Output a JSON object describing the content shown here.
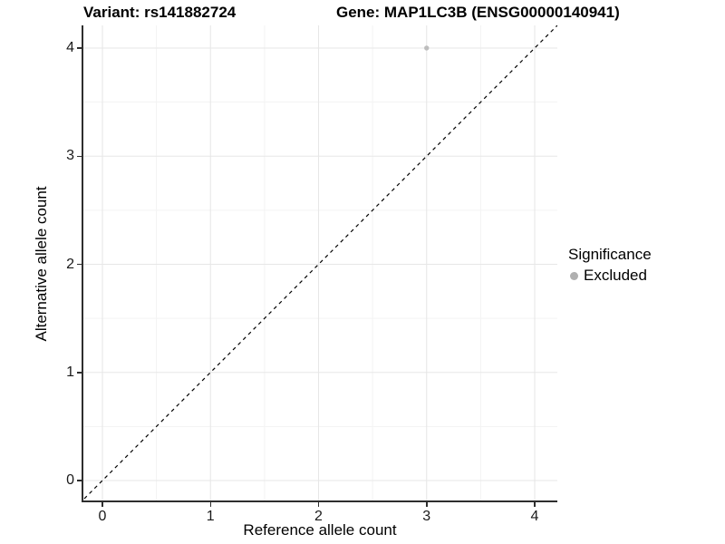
{
  "header": {
    "variant_title": "Variant: rs141882724",
    "gene_title": "Gene: MAP1LC3B (ENSG00000140941)"
  },
  "legend": {
    "title": "Significance",
    "items": [
      {
        "label": "Excluded",
        "color": "#b0b0b0"
      }
    ]
  },
  "chart_data": {
    "type": "scatter",
    "xlabel": "Reference allele count",
    "ylabel": "Alternative allele count",
    "xlim": [
      -0.18,
      4.21
    ],
    "ylim": [
      -0.18,
      4.21
    ],
    "x_major_ticks": [
      0,
      1,
      2,
      3,
      4
    ],
    "y_major_ticks": [
      0,
      1,
      2,
      3,
      4
    ],
    "x_minor_ticks": [
      0.5,
      1.5,
      2.5,
      3.5
    ],
    "y_minor_ticks": [
      0.5,
      1.5,
      2.5,
      3.5
    ],
    "grid": true,
    "legend_position": "right",
    "series": [
      {
        "name": "Excluded",
        "color": "#bdbdbd",
        "points": [
          {
            "x": 3,
            "y": 4
          }
        ]
      }
    ],
    "reference_line": {
      "type": "identity",
      "slope": 1,
      "intercept": 0,
      "style": "dashed",
      "color": "#000000"
    }
  },
  "colors": {
    "grid_major": "#e7e7e7",
    "grid_minor": "#f3f3f3",
    "axis_line": "#2e2e2e",
    "tick_text": "#1a1a1a",
    "point": "#bdbdbd"
  }
}
